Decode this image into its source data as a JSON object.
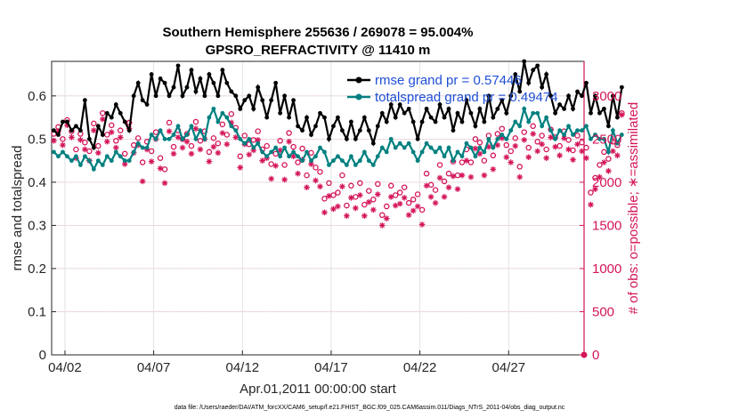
{
  "chart_data": {
    "type": "line",
    "title": "Southern Hemisphere 255636 / 269078 = 95.004%",
    "subtitle": "GPSRO_REFRACTIVITY @ 11410 m",
    "xlabel": "Apr.01,2011 00:00:00 start",
    "ylabel": "rmse and totalspread",
    "ylabel_right": "# of obs: o=possible; ∗=assimilated",
    "footer": "data file: /Users/raeder/DAI/ATM_forcXX/CAM6_setup/f.e21.FHIST_BGC.f09_025.CAM6assim.011/Diags_NTrS_2011-04/obs_diag_output.nc",
    "x_tick_labels": [
      "04/02",
      "04/07",
      "04/12",
      "04/17",
      "04/22",
      "04/27"
    ],
    "x_tick_days": [
      2,
      7,
      12,
      17,
      22,
      27
    ],
    "xlim_days": [
      1.25,
      31.25
    ],
    "ylim": [
      0,
      0.68
    ],
    "y_ticks": [
      0,
      0.1,
      0.2,
      0.3,
      0.4,
      0.5,
      0.6
    ],
    "y_tick_labels": [
      "0",
      "0.1",
      "0.2",
      "0.3",
      "0.4",
      "0.5",
      "0.6"
    ],
    "y2lim": [
      0,
      3400
    ],
    "y2_ticks": [
      0,
      500,
      1000,
      1500,
      2000,
      2500,
      3000
    ],
    "y2_tick_labels": [
      "0",
      "500",
      "1000",
      "1500",
      "2000",
      "2500",
      "3000"
    ],
    "grid": true,
    "legend_position": "top-right",
    "colors": {
      "rmse": "#000000",
      "totalspread": "#008080",
      "obs": "#d4145a",
      "legend_text": "#1f4fd6"
    },
    "series": [
      {
        "name": "rmse grand pr = 0.57446",
        "marker": "filled-circle",
        "values": [
          0.52,
          0.51,
          0.54,
          0.54,
          0.52,
          0.53,
          0.52,
          0.59,
          0.5,
          0.48,
          0.53,
          0.51,
          0.56,
          0.55,
          0.58,
          0.56,
          0.54,
          0.52,
          0.6,
          0.63,
          0.59,
          0.58,
          0.65,
          0.6,
          0.64,
          0.63,
          0.6,
          0.62,
          0.67,
          0.6,
          0.62,
          0.66,
          0.61,
          0.64,
          0.6,
          0.65,
          0.63,
          0.6,
          0.66,
          0.63,
          0.61,
          0.6,
          0.57,
          0.59,
          0.6,
          0.57,
          0.62,
          0.59,
          0.55,
          0.59,
          0.63,
          0.56,
          0.6,
          0.55,
          0.59,
          0.53,
          0.52,
          0.55,
          0.51,
          0.53,
          0.56,
          0.55,
          0.5,
          0.53,
          0.55,
          0.52,
          0.5,
          0.54,
          0.5,
          0.52,
          0.55,
          0.52,
          0.49,
          0.53,
          0.56,
          0.54,
          0.58,
          0.55,
          0.58,
          0.56,
          0.57,
          0.54,
          0.5,
          0.54,
          0.57,
          0.55,
          0.54,
          0.58,
          0.55,
          0.57,
          0.52,
          0.56,
          0.54,
          0.59,
          0.56,
          0.53,
          0.57,
          0.54,
          0.6,
          0.55,
          0.57,
          0.59,
          0.56,
          0.6,
          0.65,
          0.61,
          0.68,
          0.63,
          0.66,
          0.67,
          0.62,
          0.65,
          0.6,
          0.56,
          0.58,
          0.57,
          0.6,
          0.57,
          0.61,
          0.6,
          0.63,
          0.56,
          0.6,
          0.56,
          0.57,
          0.53,
          0.6,
          0.55,
          0.62
        ],
        "x_start_day": 1.375,
        "x_step_days": 0.25
      },
      {
        "name": "totalspread grand pr = 0.49474",
        "marker": "filled-circle",
        "values": [
          0.47,
          0.46,
          0.47,
          0.46,
          0.45,
          0.46,
          0.44,
          0.46,
          0.45,
          0.43,
          0.45,
          0.44,
          0.46,
          0.45,
          0.47,
          0.46,
          0.45,
          0.45,
          0.47,
          0.49,
          0.48,
          0.48,
          0.51,
          0.5,
          0.52,
          0.5,
          0.5,
          0.51,
          0.53,
          0.5,
          0.51,
          0.53,
          0.5,
          0.52,
          0.5,
          0.55,
          0.57,
          0.54,
          0.56,
          0.55,
          0.53,
          0.52,
          0.5,
          0.49,
          0.5,
          0.48,
          0.49,
          0.47,
          0.46,
          0.47,
          0.48,
          0.46,
          0.48,
          0.46,
          0.47,
          0.46,
          0.45,
          0.47,
          0.45,
          0.46,
          0.48,
          0.47,
          0.44,
          0.45,
          0.46,
          0.45,
          0.44,
          0.46,
          0.44,
          0.45,
          0.47,
          0.45,
          0.44,
          0.46,
          0.48,
          0.47,
          0.5,
          0.48,
          0.49,
          0.48,
          0.49,
          0.47,
          0.45,
          0.47,
          0.49,
          0.48,
          0.47,
          0.48,
          0.46,
          0.48,
          0.45,
          0.47,
          0.46,
          0.49,
          0.48,
          0.46,
          0.48,
          0.47,
          0.5,
          0.48,
          0.5,
          0.51,
          0.5,
          0.52,
          0.54,
          0.53,
          0.57,
          0.54,
          0.56,
          0.56,
          0.53,
          0.55,
          0.52,
          0.5,
          0.52,
          0.51,
          0.53,
          0.51,
          0.52,
          0.52,
          0.53,
          0.5,
          0.51,
          0.5,
          0.5,
          0.47,
          0.52,
          0.49,
          0.51
        ],
        "x_start_day": 1.375,
        "x_step_days": 0.25
      },
      {
        "name": "possible",
        "marker": "open-circle",
        "values": [
          2560,
          2640,
          2500,
          2720,
          2590,
          2380,
          2560,
          2460,
          2360,
          2680,
          2420,
          2800,
          2550,
          2660,
          2480,
          2600,
          2330,
          2690,
          2430,
          2510,
          2230,
          2470,
          2360,
          2580,
          2280,
          2150,
          2690,
          2410,
          2600,
          2500,
          2560,
          2420,
          2700,
          2480,
          2590,
          2350,
          2510,
          2450,
          2670,
          2550,
          2790,
          2630,
          2300,
          2540,
          2440,
          2490,
          2590,
          2380,
          2420,
          2210,
          2330,
          2480,
          2200,
          2570,
          2410,
          2230,
          2390,
          2080,
          2340,
          2170,
          2120,
          1810,
          1990,
          1850,
          1880,
          2080,
          1730,
          1960,
          1830,
          1990,
          1740,
          1900,
          1800,
          1980,
          1620,
          1720,
          1960,
          1850,
          1880,
          1940,
          1760,
          1800,
          1860,
          1680,
          2100,
          1970,
          1910,
          2200,
          2010,
          2100,
          2240,
          2080,
          2230,
          2380,
          2230,
          2500,
          2460,
          2250,
          2540,
          2310,
          2560,
          2620,
          2430,
          2360,
          2510,
          2180,
          2580,
          2400,
          2650,
          2470,
          2540,
          2380,
          2610,
          2520,
          2420,
          2590,
          2490,
          2370,
          2540,
          2460,
          2400,
          1880,
          2050,
          2200,
          2350,
          2270,
          2470,
          2430,
          2800
        ],
        "x_start_day": 1.375,
        "x_step_days": 0.25
      },
      {
        "name": "assimilated",
        "marker": "asterisk",
        "values": [
          2480,
          2590,
          2430,
          2660,
          2520,
          2280,
          2490,
          2380,
          2250,
          2600,
          2340,
          2730,
          2470,
          2580,
          2400,
          2520,
          2210,
          2620,
          2340,
          2430,
          2010,
          2380,
          2240,
          2500,
          2160,
          1990,
          2590,
          2330,
          2520,
          2400,
          2470,
          2330,
          2620,
          2380,
          2500,
          2240,
          2410,
          2340,
          2570,
          2440,
          2690,
          2520,
          2170,
          2440,
          2320,
          2370,
          2490,
          2250,
          2280,
          2040,
          2190,
          2370,
          2030,
          2470,
          2300,
          2100,
          2260,
          1940,
          2210,
          2020,
          1950,
          1650,
          1840,
          1690,
          1720,
          1950,
          1610,
          1820,
          1700,
          1850,
          1610,
          1770,
          1680,
          1860,
          1500,
          1580,
          1830,
          1730,
          1750,
          1820,
          1620,
          1670,
          1720,
          1510,
          1960,
          1830,
          1760,
          2050,
          1830,
          1940,
          2070,
          1920,
          2080,
          2250,
          2060,
          2390,
          2330,
          2080,
          2410,
          2150,
          2430,
          2510,
          2290,
          2230,
          2420,
          2060,
          2490,
          2290,
          2560,
          2360,
          2440,
          2280,
          2520,
          2410,
          2310,
          2510,
          2380,
          2260,
          2440,
          2360,
          2280,
          1740,
          1920,
          2060,
          2230,
          2130,
          2360,
          2310,
          2780
        ],
        "x_start_day": 1.375,
        "x_step_days": 0.25
      }
    ]
  }
}
